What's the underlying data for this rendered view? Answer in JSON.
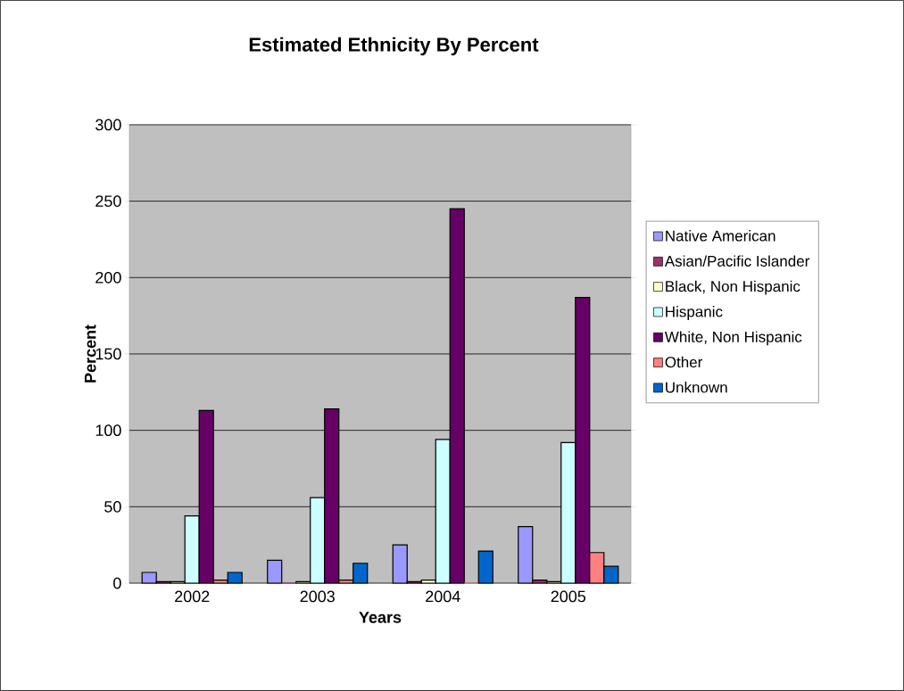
{
  "chart_data": {
    "type": "bar",
    "title": "Estimated Ethnicity By Percent",
    "xlabel": "Years",
    "ylabel": "Percent",
    "categories": [
      "2002",
      "2003",
      "2004",
      "2005"
    ],
    "series": [
      {
        "name": "Native American",
        "color": "#9999ff",
        "values": [
          7,
          15,
          25,
          37
        ]
      },
      {
        "name": "Asian/Pacific Islander",
        "color": "#993366",
        "values": [
          1,
          0,
          1,
          2
        ]
      },
      {
        "name": "Black, Non Hispanic",
        "color": "#ffffcc",
        "values": [
          1,
          1,
          2,
          1
        ]
      },
      {
        "name": "Hispanic",
        "color": "#ccffff",
        "values": [
          44,
          56,
          94,
          92
        ]
      },
      {
        "name": "White, Non Hispanic",
        "color": "#660066",
        "values": [
          113,
          114,
          245,
          187
        ]
      },
      {
        "name": "Other",
        "color": "#ff8080",
        "values": [
          2,
          2,
          0,
          20
        ]
      },
      {
        "name": "Unknown",
        "color": "#0066cc",
        "values": [
          7,
          13,
          21,
          11
        ]
      }
    ],
    "ylim": [
      0,
      300
    ],
    "yticks": [
      0,
      50,
      100,
      150,
      200,
      250,
      300
    ],
    "grid": "y",
    "legend": "right"
  }
}
